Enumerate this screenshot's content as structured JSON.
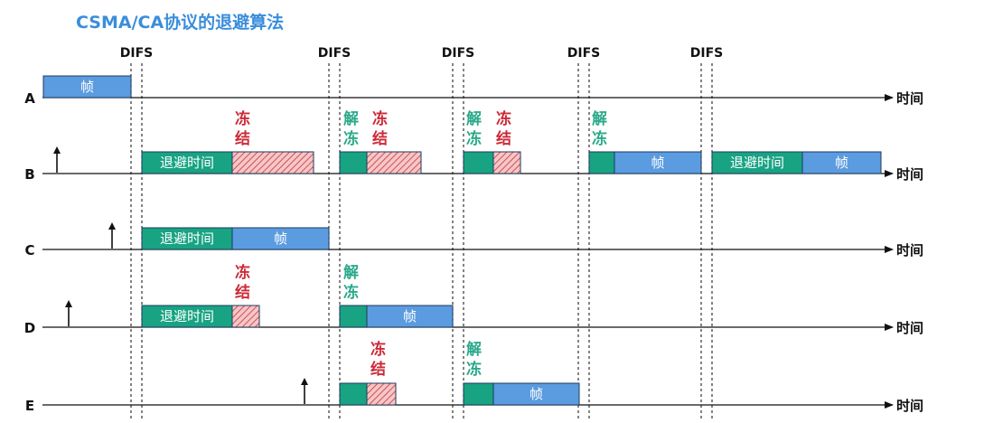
{
  "title": "CSMA/CA协议的退避算法",
  "difs_label": "DIFS",
  "time_label": "时间",
  "stations": [
    {
      "name": "A"
    },
    {
      "name": "B"
    },
    {
      "name": "C"
    },
    {
      "name": "D"
    },
    {
      "name": "E"
    }
  ],
  "labels": {
    "frame": "帧",
    "backoff": "退避时间",
    "freeze_1": "冻",
    "freeze_2": "结",
    "unfreeze_1": "解",
    "unfreeze_2": "冻"
  },
  "colors": {
    "title": "#3a8edb",
    "frame_blue": "#5b9be0",
    "backoff_green": "#18a383",
    "freeze_red": "#cc2a38",
    "unfreeze_green": "#2aa98a",
    "hatch_bg": "#f7c6c6",
    "hatch_line": "#c9525a"
  }
}
